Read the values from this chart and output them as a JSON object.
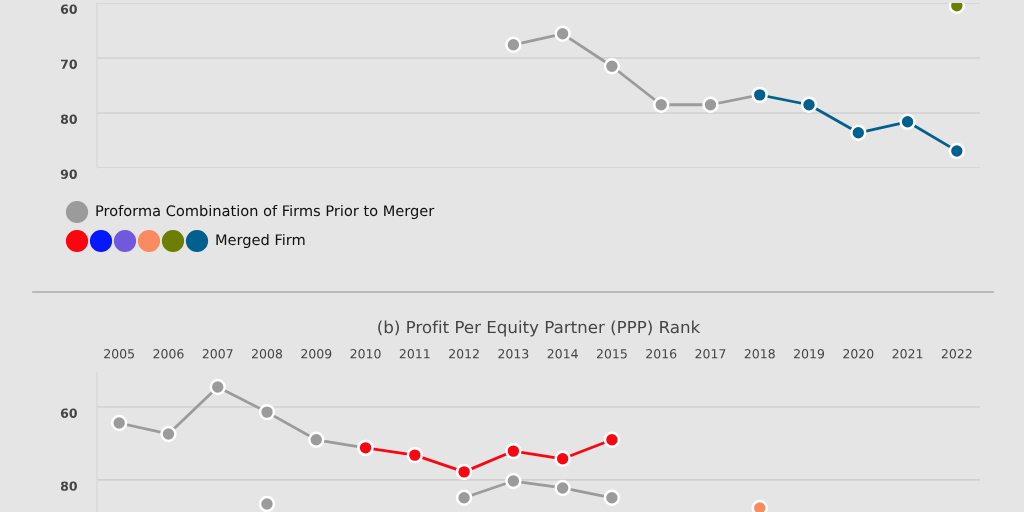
{
  "chart_data": [
    {
      "type": "line",
      "categories": [
        "2005",
        "2006",
        "2007",
        "2008",
        "2009",
        "2010",
        "2011",
        "2012",
        "2013",
        "2014",
        "2015",
        "2016",
        "2017",
        "2018",
        "2019",
        "2020",
        "2021",
        "2022"
      ],
      "ylim": [
        90,
        60
      ],
      "yticks": [
        60,
        70,
        80,
        90
      ],
      "grid": "y",
      "tick_labels": "y",
      "legend": "bottom left",
      "marker": "circle",
      "line_style": "solid",
      "series": [
        {
          "name": "Proforma Combination of Firms Prior to Merger",
          "color": "#9b9b9b",
          "values": [
            null,
            null,
            null,
            null,
            null,
            null,
            null,
            null,
            67.6,
            65.6,
            71.5,
            78.5,
            78.5,
            76.7,
            null,
            null,
            null,
            null
          ]
        },
        {
          "color": "#fa0510",
          "values": [
            null,
            null,
            null,
            null,
            null,
            null,
            null,
            null,
            null,
            null,
            null,
            null,
            null,
            null,
            null,
            null,
            null,
            null
          ]
        },
        {
          "color": "#0519fa",
          "values": [
            null,
            null,
            null,
            null,
            null,
            null,
            null,
            null,
            null,
            null,
            null,
            null,
            null,
            null,
            null,
            null,
            null,
            null
          ]
        },
        {
          "color": "#7159dd",
          "values": [
            null,
            null,
            null,
            null,
            null,
            null,
            null,
            null,
            null,
            null,
            null,
            null,
            null,
            null,
            null,
            null,
            null,
            null
          ]
        },
        {
          "color": "#fa8a60",
          "values": [
            null,
            null,
            null,
            null,
            null,
            null,
            null,
            null,
            null,
            null,
            null,
            null,
            null,
            null,
            null,
            null,
            null,
            null
          ]
        },
        {
          "color": "#6d7e05",
          "values": [
            null,
            null,
            null,
            null,
            null,
            null,
            null,
            null,
            null,
            null,
            null,
            null,
            null,
            null,
            null,
            null,
            null,
            60.5
          ]
        },
        {
          "name": "Merged Firm",
          "color": "#02608f",
          "values": [
            null,
            null,
            null,
            null,
            null,
            null,
            null,
            null,
            null,
            null,
            null,
            null,
            null,
            76.7,
            78.5,
            83.6,
            81.6,
            86.9
          ]
        }
      ]
    },
    {
      "type": "line",
      "title": "(b) Profit Per Equity Partner (PPP) Rank",
      "categories": [
        "2005",
        "2006",
        "2007",
        "2008",
        "2009",
        "2010",
        "2011",
        "2012",
        "2013",
        "2014",
        "2015",
        "2016",
        "2017",
        "2018",
        "2019",
        "2020",
        "2021",
        "2022"
      ],
      "ylim": [
        88.8,
        50.4
      ],
      "yticks": [
        60,
        80
      ],
      "grid": "y",
      "marker": "circle",
      "line_style": "solid",
      "series": [
        {
          "color": "#9b9b9b",
          "values": [
            64.4,
            67.4,
            54.5,
            61.4,
            69.0,
            71.2,
            null,
            null,
            null,
            null,
            null,
            null,
            null,
            null,
            null,
            null,
            null,
            null
          ]
        },
        {
          "color": "#9b9b9b",
          "values": [
            null,
            null,
            null,
            86.6,
            null,
            null,
            null,
            84.9,
            80.3,
            82.2,
            84.9,
            null,
            null,
            null,
            null,
            null,
            null,
            null
          ]
        },
        {
          "color": "#fa0510",
          "values": [
            null,
            null,
            null,
            null,
            null,
            71.2,
            73.2,
            77.8,
            72.1,
            74.2,
            69.0,
            null,
            null,
            null,
            null,
            null,
            null,
            null
          ]
        },
        {
          "color": "#fa8a60",
          "values": [
            null,
            null,
            null,
            null,
            null,
            null,
            null,
            null,
            null,
            null,
            null,
            null,
            null,
            87.7,
            null,
            null,
            null,
            null
          ]
        }
      ]
    }
  ]
}
